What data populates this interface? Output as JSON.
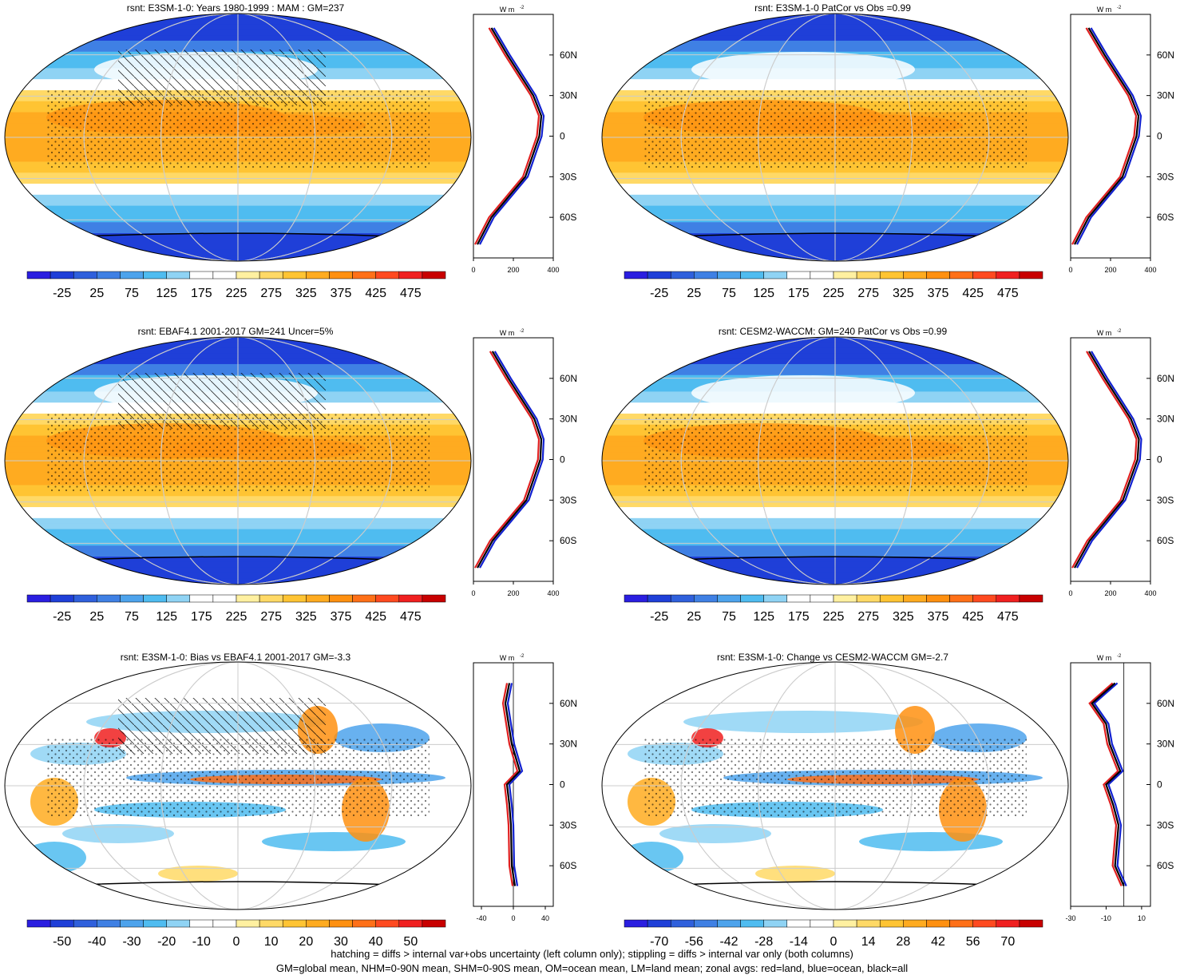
{
  "colors": {
    "abs_palette": [
      "#2a1ee0",
      "#1f3fd8",
      "#2f60dc",
      "#3f80e4",
      "#4da3ec",
      "#4fbcf0",
      "#8fd3f4",
      "#ffffff",
      "#ffffff",
      "#fff0a0",
      "#ffd966",
      "#ffc433",
      "#ffab20",
      "#ff9010",
      "#ff7018",
      "#ff4a20",
      "#f02020",
      "#c80000"
    ],
    "diff_palette": [
      "#2a1ee0",
      "#1f3fd8",
      "#2f60dc",
      "#3f80e4",
      "#4da3ec",
      "#4fbcf0",
      "#8fd3f4",
      "#ffffff",
      "#ffffff",
      "#fff0a0",
      "#ffd966",
      "#ffc433",
      "#ffab20",
      "#ff9010",
      "#ff7018",
      "#ff4a20",
      "#f02020",
      "#c80000"
    ],
    "land": "#e02020",
    "ocean": "#1020d0",
    "all": "#000000"
  },
  "panels": [
    {
      "title": "rsnt: E3SM-1-0: Years 1980-1999 : MAM : GM=237",
      "kind": "abs",
      "hatch": true,
      "colorbar": [
        "-25",
        "25",
        "75",
        "125",
        "175",
        "225",
        "275",
        "325",
        "375",
        "425",
        "475"
      ],
      "zonal_ticks": [
        "0",
        "200",
        "400"
      ],
      "lat_labels": [
        "60N",
        "30N",
        "0",
        "30S",
        "60S"
      ],
      "units": "W m",
      "units_sup": "-2"
    },
    {
      "title": "rsnt: E3SM-1-0 PatCor vs Obs =0.99",
      "kind": "abs",
      "hatch": false,
      "colorbar": [
        "-25",
        "25",
        "75",
        "125",
        "175",
        "225",
        "275",
        "325",
        "375",
        "425",
        "475"
      ],
      "zonal_ticks": [
        "0",
        "200",
        "400"
      ],
      "lat_labels": [
        "60N",
        "30N",
        "0",
        "30S",
        "60S"
      ],
      "units": "W m",
      "units_sup": "-2"
    },
    {
      "title": "rsnt: EBAF4.1 2001-2017 GM=241 Uncer=5%",
      "kind": "abs",
      "hatch": true,
      "colorbar": [
        "-25",
        "25",
        "75",
        "125",
        "175",
        "225",
        "275",
        "325",
        "375",
        "425",
        "475"
      ],
      "zonal_ticks": [
        "0",
        "200",
        "400"
      ],
      "lat_labels": [
        "60N",
        "30N",
        "0",
        "30S",
        "60S"
      ],
      "units": "W m",
      "units_sup": "-2"
    },
    {
      "title": "rsnt: CESM2-WACCM: GM=240 PatCor vs Obs =0.99",
      "kind": "abs",
      "hatch": false,
      "colorbar": [
        "-25",
        "25",
        "75",
        "125",
        "175",
        "225",
        "275",
        "325",
        "375",
        "425",
        "475"
      ],
      "zonal_ticks": [
        "0",
        "200",
        "400"
      ],
      "lat_labels": [
        "60N",
        "30N",
        "0",
        "30S",
        "60S"
      ],
      "units": "W m",
      "units_sup": "-2"
    },
    {
      "title": "rsnt: E3SM-1-0: Bias vs EBAF4.1 2001-2017 GM=-3.3",
      "kind": "diff",
      "hatch": true,
      "colorbar": [
        "-50",
        "-40",
        "-30",
        "-20",
        "-10",
        "0",
        "10",
        "20",
        "30",
        "40",
        "50"
      ],
      "zonal_ticks": [
        "-40",
        "0",
        "40"
      ],
      "lat_labels": [
        "60N",
        "30N",
        "0",
        "30S",
        "60S"
      ],
      "units": "W m",
      "units_sup": "-2"
    },
    {
      "title": "rsnt: E3SM-1-0: Change vs CESM2-WACCM GM=-2.7",
      "kind": "diff",
      "hatch": false,
      "colorbar": [
        "-70",
        "-56",
        "-42",
        "-28",
        "-14",
        "0",
        "14",
        "28",
        "42",
        "56",
        "70"
      ],
      "zonal_ticks": [
        "-30",
        "-10",
        "10"
      ],
      "lat_labels": [
        "60N",
        "30N",
        "0",
        "30S",
        "60S"
      ],
      "units": "W m",
      "units_sup": "-2"
    }
  ],
  "footer": {
    "line1": "hatching = diffs > internal var+obs uncertainty (left column only); stippling = diffs > internal var only (both columns)",
    "line2": "GM=global mean, NHM=0-90N mean, SHM=0-90S mean, OM=ocean mean, LM=land mean; zonal avgs: red=land, blue=ocean, black=all"
  },
  "chart_data": [
    {
      "type": "heatmap",
      "title": "rsnt: E3SM-1-0: Years 1980-1999 : MAM : GM=237",
      "zonal_mean": {
        "lat": [
          -80,
          -60,
          -30,
          0,
          15,
          30,
          60,
          80
        ],
        "values": [
          20,
          90,
          260,
          330,
          340,
          300,
          170,
          90
        ],
        "xlim": [
          0,
          400
        ]
      }
    },
    {
      "type": "heatmap",
      "title": "rsnt: E3SM-1-0 PatCor vs Obs =0.99",
      "zonal_mean": {
        "lat": [
          -80,
          -60,
          -30,
          0,
          15,
          30,
          60,
          80
        ],
        "values": [
          20,
          90,
          260,
          330,
          340,
          300,
          170,
          90
        ],
        "xlim": [
          0,
          400
        ]
      }
    },
    {
      "type": "heatmap",
      "title": "rsnt: EBAF4.1 2001-2017 GM=241 Uncer=5%",
      "zonal_mean": {
        "lat": [
          -80,
          -60,
          -30,
          0,
          15,
          30,
          60,
          80
        ],
        "values": [
          20,
          95,
          265,
          335,
          340,
          305,
          175,
          95
        ],
        "xlim": [
          0,
          400
        ]
      }
    },
    {
      "type": "heatmap",
      "title": "rsnt: CESM2-WACCM: GM=240 PatCor vs Obs =0.99",
      "zonal_mean": {
        "lat": [
          -80,
          -60,
          -30,
          0,
          15,
          30,
          60,
          80
        ],
        "values": [
          20,
          95,
          262,
          335,
          342,
          302,
          172,
          92
        ],
        "xlim": [
          0,
          400
        ]
      }
    },
    {
      "type": "heatmap",
      "title": "rsnt: E3SM-1-0: Bias vs EBAF4.1 2001-2017 GM=-3.3",
      "zonal_mean": {
        "lat": [
          -75,
          -60,
          -30,
          -15,
          0,
          10,
          30,
          45,
          60,
          75
        ],
        "values": [
          2,
          -2,
          -3,
          -5,
          -8,
          8,
          -2,
          -6,
          -10,
          -5
        ],
        "xlim": [
          -50,
          50
        ]
      }
    },
    {
      "type": "heatmap",
      "title": "rsnt: E3SM-1-0: Change vs CESM2-WACCM GM=-2.7",
      "zonal_mean": {
        "lat": [
          -75,
          -60,
          -30,
          -15,
          0,
          10,
          30,
          45,
          60,
          75
        ],
        "values": [
          0,
          -5,
          -3,
          -6,
          -10,
          -2,
          -8,
          -10,
          -18,
          -5
        ],
        "xlim": [
          -30,
          15
        ]
      }
    }
  ]
}
